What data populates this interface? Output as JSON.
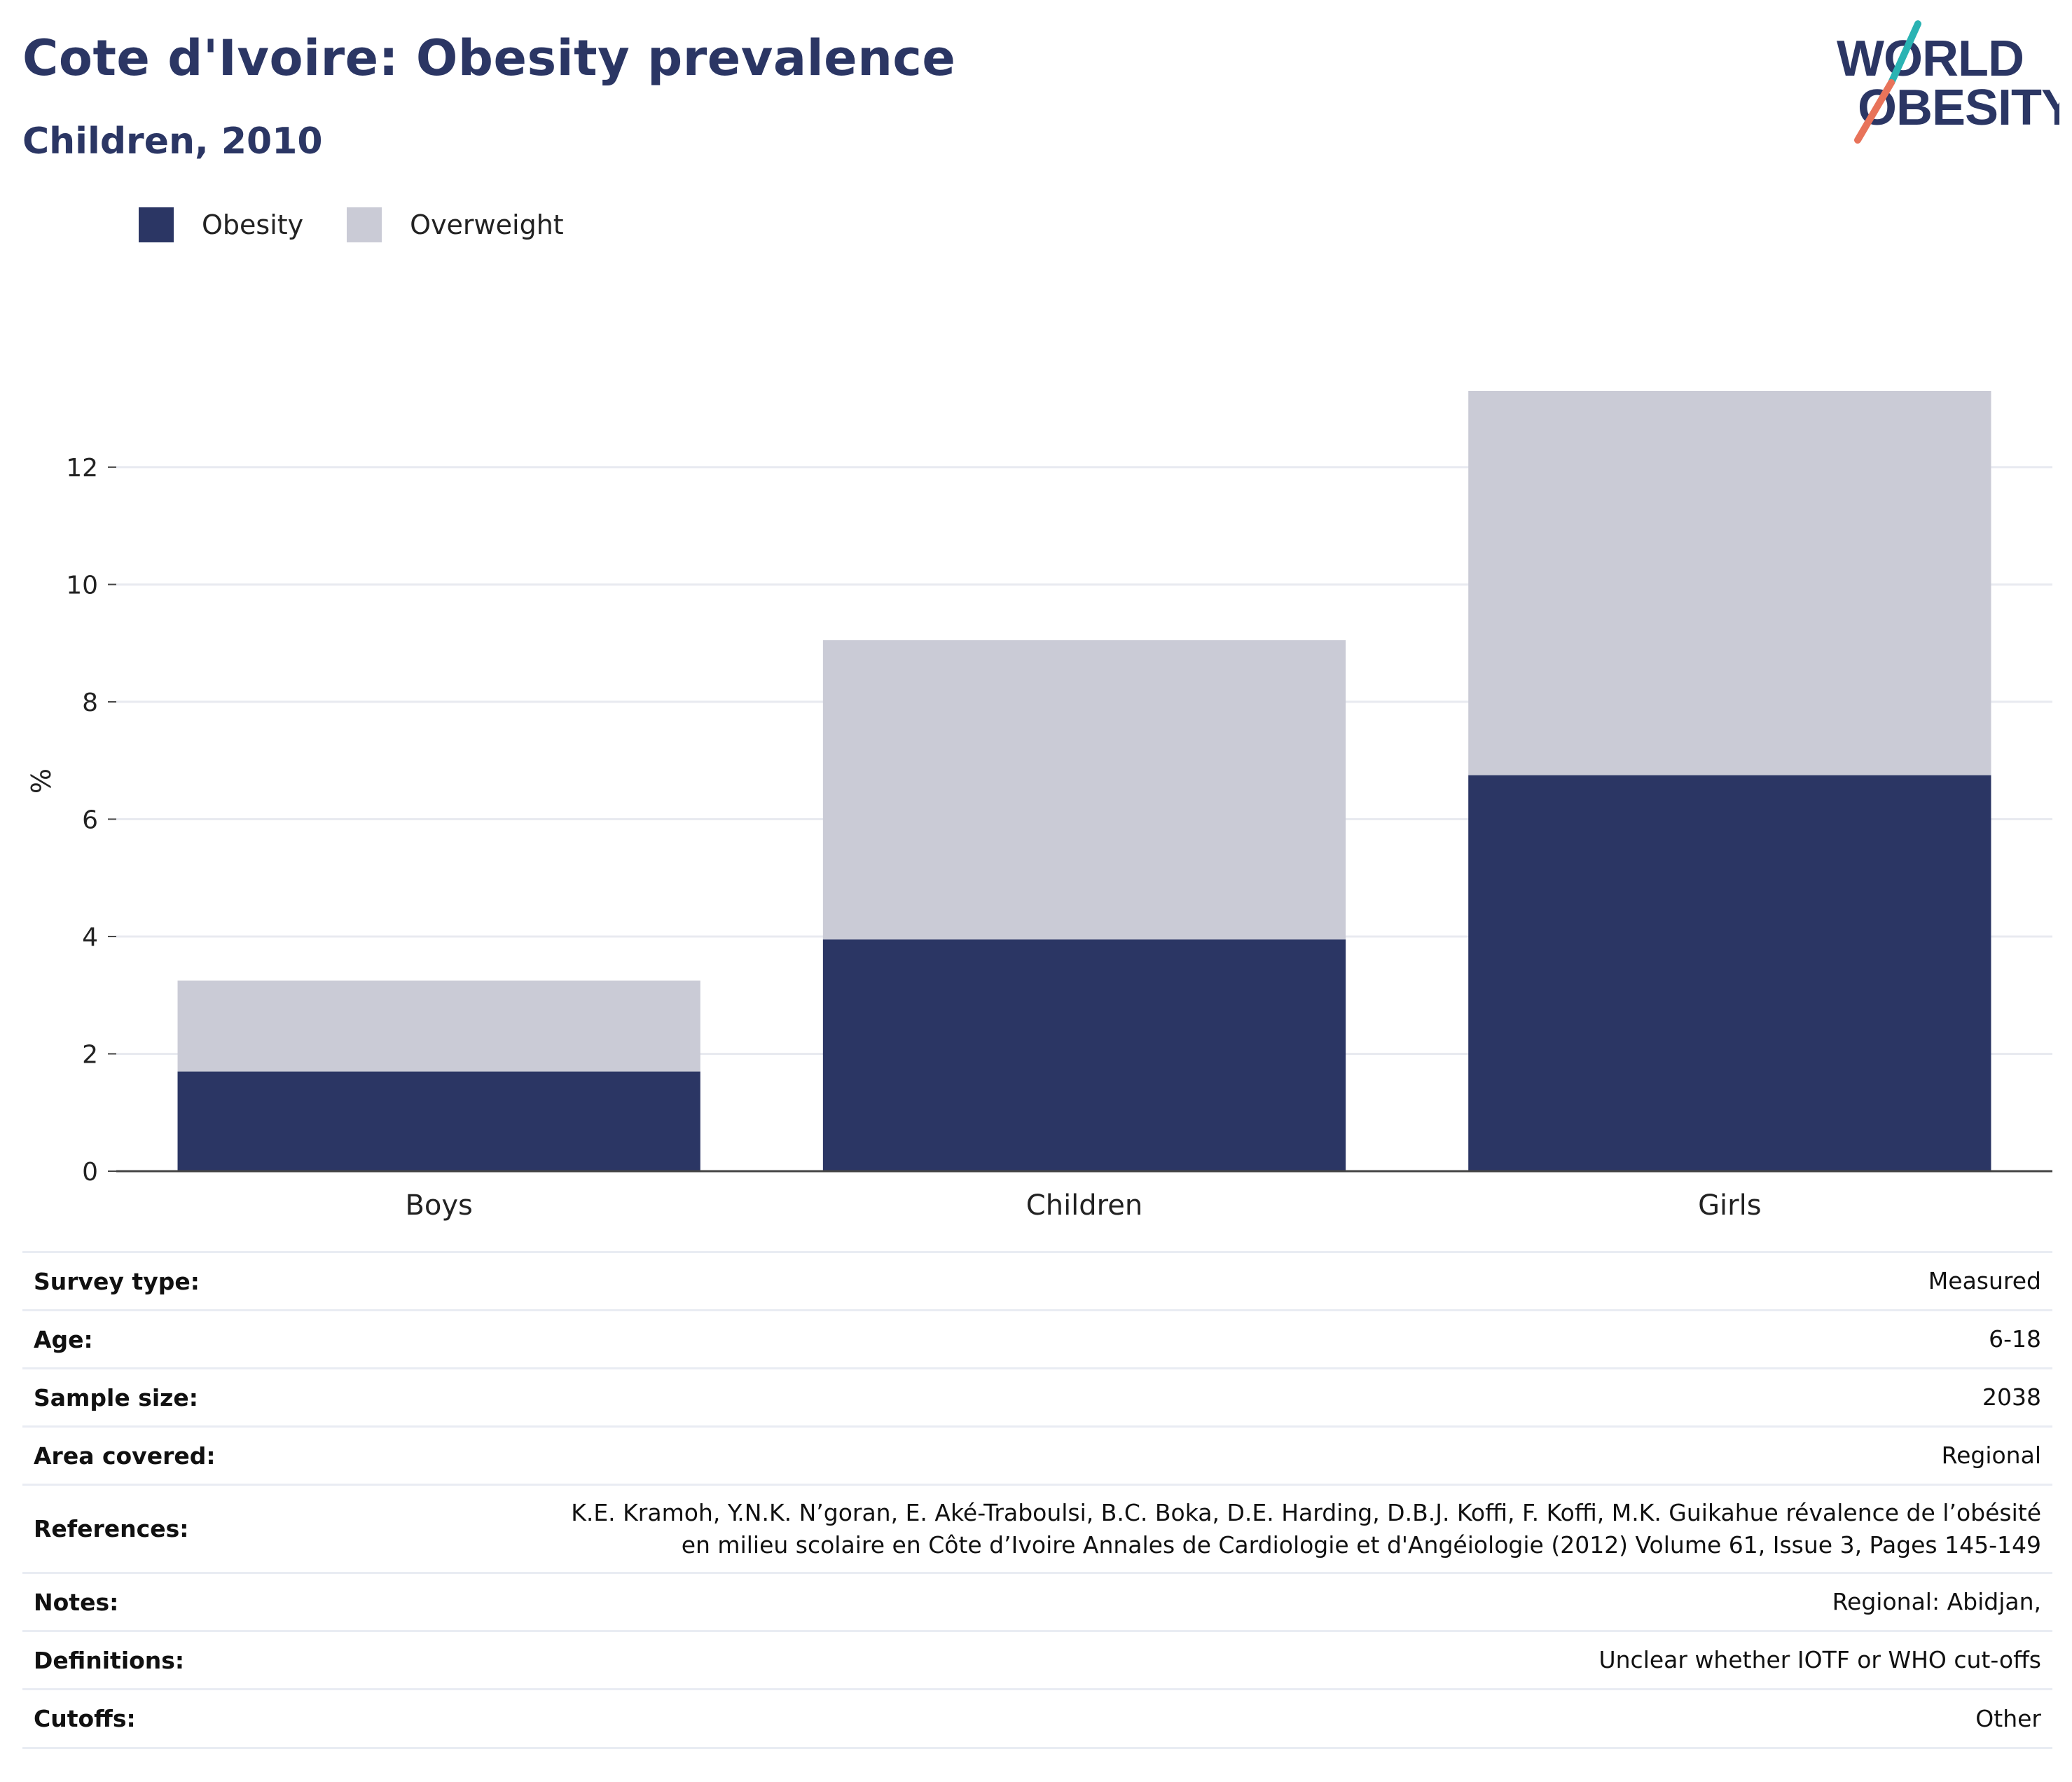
{
  "header": {
    "title": "Cote d'Ivoire: Obesity prevalence",
    "subtitle": "Children, 2010"
  },
  "logo": {
    "line1": "WORLD",
    "line2": "OBESITY",
    "colors": {
      "text": "#2b3664",
      "slash_top": "#2ab3b3",
      "slash_bottom": "#e8735a"
    }
  },
  "legend": {
    "items": [
      {
        "label": "Obesity",
        "color": "#2b3664"
      },
      {
        "label": "Overweight",
        "color": "#cacbd6"
      }
    ]
  },
  "chart_data": {
    "type": "bar",
    "stacked": true,
    "categories": [
      "Boys",
      "Children",
      "Girls"
    ],
    "series": [
      {
        "name": "Obesity",
        "color": "#2b3664",
        "values": [
          1.7,
          3.95,
          6.75
        ]
      },
      {
        "name": "Overweight",
        "color": "#cacbd6",
        "values": [
          1.55,
          5.1,
          6.55
        ]
      }
    ],
    "ylabel": "%",
    "ylim": [
      0,
      13.3
    ],
    "yticks": [
      0,
      2,
      4,
      6,
      8,
      10,
      12
    ],
    "grid": true,
    "legend_position": "top-left"
  },
  "info": [
    {
      "label": "Survey type:",
      "value": "Measured"
    },
    {
      "label": "Age:",
      "value": "6-18"
    },
    {
      "label": "Sample size:",
      "value": "2038"
    },
    {
      "label": "Area covered:",
      "value": "Regional"
    },
    {
      "label": "References:",
      "value": "K.E. Kramoh, Y.N.K. N’goran, E. Aké-Traboulsi, B.C. Boka, D.E. Harding, D.B.J. Koffi, F. Koffi, M.K. Guikahue révalence de l’obésité en milieu scolaire en Côte d’Ivoire Annales de Cardiologie et d'Angéiologie (2012) Volume 61, Issue 3, Pages 145-149"
    },
    {
      "label": "Notes:",
      "value": "Regional: Abidjan,"
    },
    {
      "label": "Definitions:",
      "value": "Unclear whether IOTF or WHO cut-offs"
    },
    {
      "label": "Cutoffs:",
      "value": "Other"
    }
  ]
}
